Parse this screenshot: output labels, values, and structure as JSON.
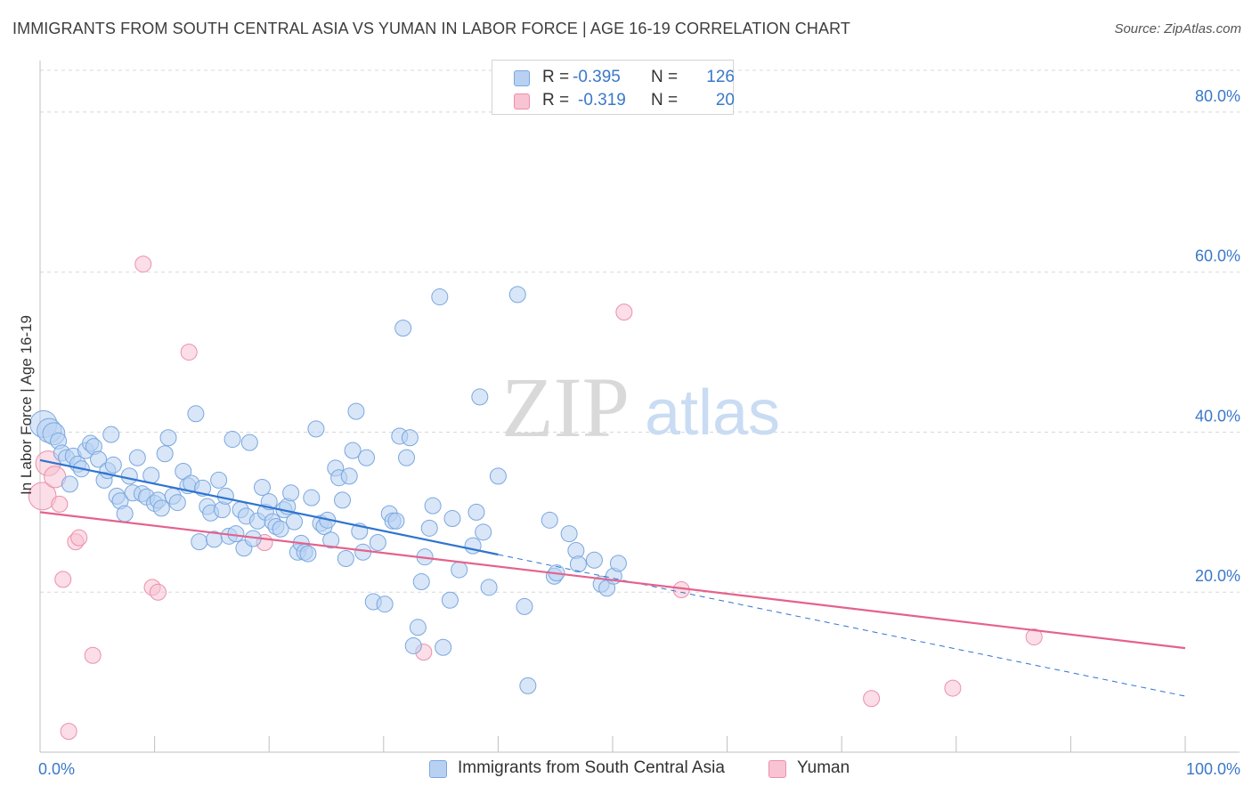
{
  "header": {
    "title": "IMMIGRANTS FROM SOUTH CENTRAL ASIA VS YUMAN IN LABOR FORCE | AGE 16-19 CORRELATION CHART",
    "source": "Source: ZipAtlas.com"
  },
  "watermark": {
    "zip": "ZIP",
    "atlas": "atlas"
  },
  "legend_top": {
    "rows": [
      {
        "r_key": "R =",
        "r_val": "-0.395",
        "n_key": "N =",
        "n_val": "126"
      },
      {
        "r_key": "R =",
        "r_val": "-0.319",
        "n_key": "N =",
        "n_val": "20"
      }
    ]
  },
  "legend_bottom": {
    "items": [
      {
        "label": "Immigrants from South Central Asia"
      },
      {
        "label": "Yuman"
      }
    ]
  },
  "colors": {
    "blue_fill": "#b8d1f2",
    "blue_stroke": "#7aa7df",
    "blue_line": "#2f74d0",
    "pink_fill": "#f8c3d3",
    "pink_stroke": "#ec8fab",
    "pink_line": "#e4628d",
    "tick_label": "#3a78c9",
    "grid": "#d8d8d8"
  },
  "chart_data": {
    "type": "scatter",
    "title": "IMMIGRANTS FROM SOUTH CENTRAL ASIA VS YUMAN IN LABOR FORCE | AGE 16-19 CORRELATION CHART",
    "xlabel": "",
    "ylabel": "In Labor Force | Age 16-19",
    "xlim": [
      0,
      100
    ],
    "ylim": [
      0,
      86
    ],
    "x_tick_labels": [
      "0.0%",
      "100.0%"
    ],
    "y_ticks": [
      20,
      40,
      60,
      80
    ],
    "y_tick_labels": [
      "20.0%",
      "40.0%",
      "60.0%",
      "80.0%"
    ],
    "grid": true,
    "legend_placement": "top-center",
    "series": [
      {
        "name": "Immigrants from South Central Asia",
        "r": -0.395,
        "n": 126,
        "trend": {
          "x0": 0,
          "y0": 36.5,
          "x1": 100,
          "y1": 7.0,
          "solid_until_x": 40
        },
        "points": [
          [
            0.3,
            41.0
          ],
          [
            0.8,
            40.2
          ],
          [
            1.2,
            39.8
          ],
          [
            1.6,
            38.9
          ],
          [
            1.9,
            37.4
          ],
          [
            2.3,
            36.8
          ],
          [
            2.6,
            33.5
          ],
          [
            2.9,
            37.0
          ],
          [
            3.3,
            36.0
          ],
          [
            3.6,
            35.4
          ],
          [
            4.0,
            37.7
          ],
          [
            4.4,
            38.6
          ],
          [
            4.7,
            38.2
          ],
          [
            5.1,
            36.6
          ],
          [
            5.6,
            34.0
          ],
          [
            5.9,
            35.2
          ],
          [
            6.2,
            39.7
          ],
          [
            6.4,
            35.9
          ],
          [
            6.7,
            32.0
          ],
          [
            7.0,
            31.4
          ],
          [
            7.4,
            29.8
          ],
          [
            7.8,
            34.5
          ],
          [
            8.1,
            32.4
          ],
          [
            8.5,
            36.8
          ],
          [
            8.9,
            32.3
          ],
          [
            9.3,
            31.9
          ],
          [
            9.7,
            34.6
          ],
          [
            10.0,
            31.1
          ],
          [
            10.3,
            31.5
          ],
          [
            10.9,
            37.3
          ],
          [
            11.2,
            39.3
          ],
          [
            11.6,
            32.0
          ],
          [
            12.0,
            31.2
          ],
          [
            12.5,
            35.1
          ],
          [
            12.9,
            33.3
          ],
          [
            13.2,
            33.6
          ],
          [
            13.6,
            42.3
          ],
          [
            13.9,
            26.3
          ],
          [
            14.2,
            33.0
          ],
          [
            14.6,
            30.7
          ],
          [
            14.9,
            29.9
          ],
          [
            15.2,
            26.6
          ],
          [
            15.6,
            34.0
          ],
          [
            15.9,
            30.3
          ],
          [
            16.2,
            32.0
          ],
          [
            16.5,
            27.0
          ],
          [
            16.8,
            39.1
          ],
          [
            17.1,
            27.3
          ],
          [
            17.5,
            30.3
          ],
          [
            17.8,
            25.5
          ],
          [
            18.0,
            29.5
          ],
          [
            18.3,
            38.7
          ],
          [
            18.6,
            26.7
          ],
          [
            19.0,
            28.9
          ],
          [
            19.4,
            33.1
          ],
          [
            19.7,
            30.0
          ],
          [
            20.0,
            31.3
          ],
          [
            20.3,
            28.8
          ],
          [
            20.6,
            28.2
          ],
          [
            21.0,
            27.9
          ],
          [
            21.3,
            30.3
          ],
          [
            21.6,
            30.7
          ],
          [
            21.9,
            32.4
          ],
          [
            22.2,
            28.8
          ],
          [
            22.5,
            25.0
          ],
          [
            22.8,
            26.1
          ],
          [
            23.1,
            25.0
          ],
          [
            23.4,
            24.8
          ],
          [
            24.1,
            40.4
          ],
          [
            24.5,
            28.6
          ],
          [
            24.8,
            28.2
          ],
          [
            25.1,
            29.0
          ],
          [
            25.4,
            26.5
          ],
          [
            25.8,
            35.5
          ],
          [
            26.1,
            34.3
          ],
          [
            26.4,
            31.5
          ],
          [
            26.7,
            24.2
          ],
          [
            27.0,
            34.5
          ],
          [
            27.3,
            37.7
          ],
          [
            27.6,
            42.6
          ],
          [
            27.9,
            27.6
          ],
          [
            28.2,
            25.0
          ],
          [
            28.5,
            36.8
          ],
          [
            29.1,
            18.8
          ],
          [
            29.5,
            26.2
          ],
          [
            30.1,
            18.5
          ],
          [
            30.5,
            29.8
          ],
          [
            30.8,
            28.9
          ],
          [
            31.1,
            28.9
          ],
          [
            31.4,
            39.5
          ],
          [
            31.7,
            53.0
          ],
          [
            32.0,
            36.8
          ],
          [
            32.3,
            39.3
          ],
          [
            32.6,
            13.3
          ],
          [
            33.0,
            15.6
          ],
          [
            33.3,
            21.3
          ],
          [
            33.6,
            24.4
          ],
          [
            34.0,
            28.0
          ],
          [
            34.3,
            30.8
          ],
          [
            34.9,
            56.9
          ],
          [
            35.2,
            13.1
          ],
          [
            35.8,
            19.0
          ],
          [
            36.6,
            22.8
          ],
          [
            37.8,
            25.8
          ],
          [
            38.1,
            30.0
          ],
          [
            38.4,
            44.4
          ],
          [
            39.2,
            20.6
          ],
          [
            40.0,
            34.5
          ],
          [
            41.7,
            57.2
          ],
          [
            42.3,
            18.2
          ],
          [
            42.6,
            8.3
          ],
          [
            44.5,
            29.0
          ],
          [
            44.9,
            22.0
          ],
          [
            45.1,
            22.4
          ],
          [
            46.2,
            27.3
          ],
          [
            46.8,
            25.2
          ],
          [
            47.0,
            23.5
          ],
          [
            48.4,
            24.0
          ],
          [
            49.0,
            21.0
          ],
          [
            49.5,
            20.5
          ],
          [
            50.1,
            22.0
          ],
          [
            50.5,
            23.6
          ],
          [
            38.7,
            27.5
          ],
          [
            36.0,
            29.2
          ],
          [
            23.7,
            31.8
          ],
          [
            10.6,
            30.5
          ]
        ]
      },
      {
        "name": "Yuman",
        "r": -0.319,
        "n": 20,
        "trend": {
          "x0": 0,
          "y0": 30.0,
          "x1": 100,
          "y1": 13.0
        },
        "points": [
          [
            0.2,
            32.0
          ],
          [
            0.7,
            36.1
          ],
          [
            1.3,
            34.4
          ],
          [
            1.7,
            31.0
          ],
          [
            2.0,
            21.6
          ],
          [
            2.5,
            2.6
          ],
          [
            3.1,
            26.3
          ],
          [
            3.4,
            26.8
          ],
          [
            4.6,
            12.1
          ],
          [
            9.0,
            61.0
          ],
          [
            9.8,
            20.6
          ],
          [
            10.3,
            20.0
          ],
          [
            13.0,
            50.0
          ],
          [
            19.6,
            26.2
          ],
          [
            33.5,
            12.5
          ],
          [
            51.0,
            55.0
          ],
          [
            56.0,
            20.3
          ],
          [
            72.6,
            6.7
          ],
          [
            79.7,
            8.0
          ],
          [
            86.8,
            14.4
          ]
        ]
      }
    ]
  }
}
